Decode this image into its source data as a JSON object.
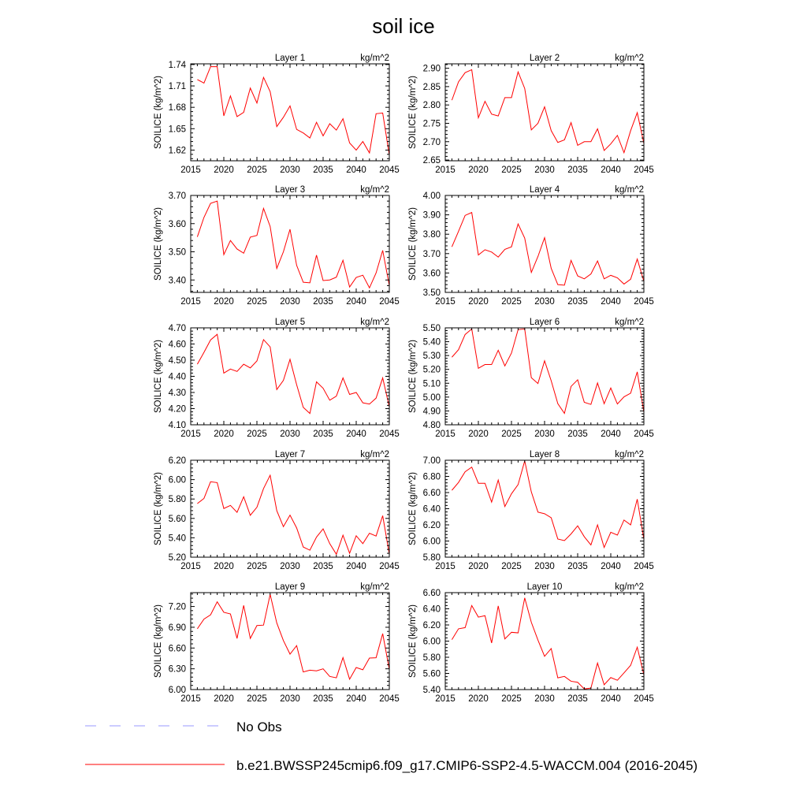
{
  "figure": {
    "title": "soil ice",
    "legend": [
      {
        "label": "No Obs",
        "color": "#9999ff",
        "style": "dashed"
      },
      {
        "label": "b.e21.BWSSP245cmip6.f09_g17.CMIP6-SSP2-4.5-WACCM.004 (2016-2045)",
        "color": "#ff0000",
        "style": "solid"
      }
    ]
  },
  "colors": {
    "series": "#ff0000",
    "axes": "#000000"
  },
  "chart_data": [
    {
      "type": "line",
      "title": "Layer 1",
      "units": "kg/m^2",
      "ylabel": "SOILICE  (kg/m^2)",
      "xlim": [
        2015,
        2045
      ],
      "ylim": [
        1.605,
        1.741
      ],
      "xticks": [
        "2015",
        "2020",
        "2025",
        "2030",
        "2035",
        "2040",
        "2045"
      ],
      "yticks": [
        "1.62",
        "1.65",
        "1.68",
        "1.71",
        "1.74"
      ],
      "x": [
        2016,
        2017,
        2018,
        2019,
        2020,
        2021,
        2022,
        2023,
        2024,
        2025,
        2026,
        2027,
        2028,
        2029,
        2030,
        2031,
        2032,
        2033,
        2034,
        2035,
        2036,
        2037,
        2038,
        2039,
        2040,
        2041,
        2042,
        2043,
        2044,
        2045
      ],
      "series": [
        {
          "values": [
            1.719,
            1.714,
            1.737,
            1.737,
            1.668,
            1.696,
            1.667,
            1.673,
            1.707,
            1.686,
            1.722,
            1.702,
            1.653,
            1.666,
            1.682,
            1.649,
            1.644,
            1.637,
            1.659,
            1.64,
            1.657,
            1.648,
            1.664,
            1.63,
            1.62,
            1.632,
            1.616,
            1.671,
            1.672,
            1.613
          ]
        }
      ]
    },
    {
      "type": "line",
      "title": "Layer 2",
      "units": "kg/m^2",
      "ylabel": "SOILICE  (kg/m^2)",
      "xlim": [
        2015,
        2045
      ],
      "ylim": [
        2.648,
        2.912
      ],
      "xticks": [
        "2015",
        "2020",
        "2025",
        "2030",
        "2035",
        "2040",
        "2045"
      ],
      "yticks": [
        "2.65",
        "2.70",
        "2.75",
        "2.80",
        "2.85",
        "2.90"
      ],
      "x": [
        2016,
        2017,
        2018,
        2019,
        2020,
        2021,
        2022,
        2023,
        2024,
        2025,
        2026,
        2027,
        2028,
        2029,
        2030,
        2031,
        2032,
        2033,
        2034,
        2035,
        2036,
        2037,
        2038,
        2039,
        2040,
        2041,
        2042,
        2043,
        2044,
        2045
      ],
      "series": [
        {
          "values": [
            2.813,
            2.863,
            2.888,
            2.896,
            2.765,
            2.81,
            2.775,
            2.77,
            2.82,
            2.82,
            2.89,
            2.845,
            2.732,
            2.75,
            2.795,
            2.73,
            2.698,
            2.705,
            2.752,
            2.69,
            2.7,
            2.7,
            2.735,
            2.676,
            2.694,
            2.717,
            2.67,
            2.73,
            2.779,
            2.695
          ]
        }
      ]
    },
    {
      "type": "line",
      "title": "Layer 3",
      "units": "kg/m^2",
      "ylabel": "SOILICE  (kg/m^2)",
      "xlim": [
        2015,
        2045
      ],
      "ylim": [
        3.356,
        3.7
      ],
      "xticks": [
        "2015",
        "2020",
        "2025",
        "2030",
        "2035",
        "2040",
        "2045"
      ],
      "yticks": [
        "3.40",
        "3.50",
        "3.60",
        "3.70"
      ],
      "x": [
        2016,
        2017,
        2018,
        2019,
        2020,
        2021,
        2022,
        2023,
        2024,
        2025,
        2026,
        2027,
        2028,
        2029,
        2030,
        2031,
        2032,
        2033,
        2034,
        2035,
        2036,
        2037,
        2038,
        2039,
        2040,
        2041,
        2042,
        2043,
        2044,
        2045
      ],
      "series": [
        {
          "values": [
            3.553,
            3.622,
            3.672,
            3.68,
            3.49,
            3.54,
            3.51,
            3.495,
            3.552,
            3.558,
            3.654,
            3.59,
            3.441,
            3.5,
            3.58,
            3.452,
            3.392,
            3.39,
            3.488,
            3.398,
            3.4,
            3.41,
            3.47,
            3.375,
            3.409,
            3.417,
            3.372,
            3.425,
            3.505,
            3.38
          ]
        }
      ]
    },
    {
      "type": "line",
      "title": "Layer 4",
      "units": "kg/m^2",
      "ylabel": "SOILICE  (kg/m^2)",
      "xlim": [
        2015,
        2045
      ],
      "ylim": [
        3.5,
        4.0
      ],
      "xticks": [
        "2015",
        "2020",
        "2025",
        "2030",
        "2035",
        "2040",
        "2045"
      ],
      "yticks": [
        "3.50",
        "3.60",
        "3.70",
        "3.80",
        "3.90",
        "4.00"
      ],
      "x": [
        2016,
        2017,
        2018,
        2019,
        2020,
        2021,
        2022,
        2023,
        2024,
        2025,
        2026,
        2027,
        2028,
        2029,
        2030,
        2031,
        2032,
        2033,
        2034,
        2035,
        2036,
        2037,
        2038,
        2039,
        2040,
        2041,
        2042,
        2043,
        2044,
        2045
      ],
      "series": [
        {
          "values": [
            3.735,
            3.815,
            3.897,
            3.912,
            3.693,
            3.72,
            3.708,
            3.682,
            3.722,
            3.735,
            3.853,
            3.78,
            3.603,
            3.685,
            3.782,
            3.624,
            3.54,
            3.537,
            3.665,
            3.585,
            3.57,
            3.595,
            3.662,
            3.57,
            3.588,
            3.575,
            3.543,
            3.568,
            3.672,
            3.557
          ]
        }
      ]
    },
    {
      "type": "line",
      "title": "Layer 5",
      "units": "kg/m^2",
      "ylabel": "SOILICE  (kg/m^2)",
      "xlim": [
        2015,
        2045
      ],
      "ylim": [
        4.1,
        4.7
      ],
      "xticks": [
        "2015",
        "2020",
        "2025",
        "2030",
        "2035",
        "2040",
        "2045"
      ],
      "yticks": [
        "4.10",
        "4.20",
        "4.30",
        "4.40",
        "4.50",
        "4.60",
        "4.70"
      ],
      "x": [
        2016,
        2017,
        2018,
        2019,
        2020,
        2021,
        2022,
        2023,
        2024,
        2025,
        2026,
        2027,
        2028,
        2029,
        2030,
        2031,
        2032,
        2033,
        2034,
        2035,
        2036,
        2037,
        2038,
        2039,
        2040,
        2041,
        2042,
        2043,
        2044,
        2045
      ],
      "series": [
        {
          "values": [
            4.475,
            4.548,
            4.625,
            4.66,
            4.42,
            4.445,
            4.43,
            4.475,
            4.452,
            4.495,
            4.627,
            4.582,
            4.318,
            4.375,
            4.505,
            4.348,
            4.208,
            4.17,
            4.366,
            4.326,
            4.252,
            4.277,
            4.39,
            4.288,
            4.3,
            4.236,
            4.228,
            4.265,
            4.39,
            4.21
          ]
        }
      ]
    },
    {
      "type": "line",
      "title": "Layer 6",
      "units": "kg/m^2",
      "ylabel": "SOILICE  (kg/m^2)",
      "xlim": [
        2015,
        2045
      ],
      "ylim": [
        4.8,
        5.5
      ],
      "xticks": [
        "2015",
        "2020",
        "2025",
        "2030",
        "2035",
        "2040",
        "2045"
      ],
      "yticks": [
        "4.80",
        "4.90",
        "5.00",
        "5.10",
        "5.20",
        "5.30",
        "5.40",
        "5.50"
      ],
      "x": [
        2016,
        2017,
        2018,
        2019,
        2020,
        2021,
        2022,
        2023,
        2024,
        2025,
        2026,
        2027,
        2028,
        2029,
        2030,
        2031,
        2032,
        2033,
        2034,
        2035,
        2036,
        2037,
        2038,
        2039,
        2040,
        2041,
        2042,
        2043,
        2044,
        2045
      ],
      "series": [
        {
          "values": [
            5.288,
            5.342,
            5.452,
            5.492,
            5.208,
            5.235,
            5.235,
            5.338,
            5.225,
            5.318,
            5.487,
            5.492,
            5.14,
            5.098,
            5.262,
            5.118,
            4.953,
            4.882,
            5.077,
            5.125,
            4.962,
            4.947,
            5.102,
            4.952,
            5.066,
            4.95,
            5.002,
            5.028,
            5.182,
            4.89
          ]
        }
      ]
    },
    {
      "type": "line",
      "title": "Layer 7",
      "units": "kg/m^2",
      "ylabel": "SOILICE  (kg/m^2)",
      "xlim": [
        2015,
        2045
      ],
      "ylim": [
        5.2,
        6.2
      ],
      "xticks": [
        "2015",
        "2020",
        "2025",
        "2030",
        "2035",
        "2040",
        "2045"
      ],
      "yticks": [
        "5.20",
        "5.40",
        "5.60",
        "5.80",
        "6.00",
        "6.20"
      ],
      "x": [
        2016,
        2017,
        2018,
        2019,
        2020,
        2021,
        2022,
        2023,
        2024,
        2025,
        2026,
        2027,
        2028,
        2029,
        2030,
        2031,
        2032,
        2033,
        2034,
        2035,
        2036,
        2037,
        2038,
        2039,
        2040,
        2041,
        2042,
        2043,
        2044,
        2045
      ],
      "series": [
        {
          "values": [
            5.753,
            5.806,
            5.978,
            5.969,
            5.702,
            5.734,
            5.663,
            5.823,
            5.632,
            5.715,
            5.908,
            6.045,
            5.68,
            5.515,
            5.634,
            5.502,
            5.305,
            5.272,
            5.407,
            5.492,
            5.34,
            5.23,
            5.427,
            5.24,
            5.421,
            5.34,
            5.447,
            5.418,
            5.628,
            5.23
          ]
        }
      ]
    },
    {
      "type": "line",
      "title": "Layer 8",
      "units": "kg/m^2",
      "ylabel": "SOILICE  (kg/m^2)",
      "xlim": [
        2015,
        2045
      ],
      "ylim": [
        5.8,
        7.0
      ],
      "xticks": [
        "2015",
        "2020",
        "2025",
        "2030",
        "2035",
        "2040",
        "2045"
      ],
      "yticks": [
        "5.80",
        "6.00",
        "6.20",
        "6.40",
        "6.60",
        "6.80",
        "7.00"
      ],
      "x": [
        2016,
        2017,
        2018,
        2019,
        2020,
        2021,
        2022,
        2023,
        2024,
        2025,
        2026,
        2027,
        2028,
        2029,
        2030,
        2031,
        2032,
        2033,
        2034,
        2035,
        2036,
        2037,
        2038,
        2039,
        2040,
        2041,
        2042,
        2043,
        2044,
        2045
      ],
      "series": [
        {
          "values": [
            6.628,
            6.725,
            6.858,
            6.915,
            6.715,
            6.715,
            6.482,
            6.755,
            6.427,
            6.585,
            6.698,
            6.992,
            6.608,
            6.358,
            6.338,
            6.288,
            6.025,
            6.005,
            6.088,
            6.188,
            6.053,
            5.952,
            6.2,
            5.92,
            6.108,
            6.073,
            6.26,
            6.2,
            6.518,
            6.02
          ]
        }
      ]
    },
    {
      "type": "line",
      "title": "Layer 9",
      "units": "kg/m^2",
      "ylabel": "SOILICE  (kg/m^2)",
      "xlim": [
        2015,
        2045
      ],
      "ylim": [
        6.0,
        7.4
      ],
      "xticks": [
        "2015",
        "2020",
        "2025",
        "2030",
        "2035",
        "2040",
        "2045"
      ],
      "yticks": [
        "6.00",
        "6.30",
        "6.60",
        "6.90",
        "7.20"
      ],
      "x": [
        2016,
        2017,
        2018,
        2019,
        2020,
        2021,
        2022,
        2023,
        2024,
        2025,
        2026,
        2027,
        2028,
        2029,
        2030,
        2031,
        2032,
        2033,
        2034,
        2035,
        2036,
        2037,
        2038,
        2039,
        2040,
        2041,
        2042,
        2043,
        2044,
        2045
      ],
      "series": [
        {
          "values": [
            6.878,
            7.018,
            7.08,
            7.268,
            7.116,
            7.092,
            6.738,
            7.216,
            6.738,
            6.925,
            6.931,
            7.375,
            6.962,
            6.708,
            6.512,
            6.635,
            6.255,
            6.28,
            6.27,
            6.3,
            6.19,
            6.17,
            6.462,
            6.15,
            6.319,
            6.286,
            6.455,
            6.46,
            6.808,
            6.29
          ]
        }
      ]
    },
    {
      "type": "line",
      "title": "Layer 10",
      "units": "kg/m^2",
      "ylabel": "SOILICE  (kg/m^2)",
      "xlim": [
        2015,
        2045
      ],
      "ylim": [
        5.4,
        6.6
      ],
      "xticks": [
        "2015",
        "2020",
        "2025",
        "2030",
        "2035",
        "2040",
        "2045"
      ],
      "yticks": [
        "5.40",
        "5.60",
        "5.80",
        "6.00",
        "6.20",
        "6.40",
        "6.60"
      ],
      "x": [
        2016,
        2017,
        2018,
        2019,
        2020,
        2021,
        2022,
        2023,
        2024,
        2025,
        2026,
        2027,
        2028,
        2029,
        2030,
        2031,
        2032,
        2033,
        2034,
        2035,
        2036,
        2037,
        2038,
        2039,
        2040,
        2041,
        2042,
        2043,
        2044,
        2045
      ],
      "series": [
        {
          "values": [
            6.018,
            6.152,
            6.167,
            6.44,
            6.297,
            6.315,
            5.977,
            6.436,
            6.027,
            6.109,
            6.102,
            6.535,
            6.233,
            6.013,
            5.812,
            5.908,
            5.545,
            5.563,
            5.503,
            5.49,
            5.408,
            5.418,
            5.728,
            5.46,
            5.549,
            5.515,
            5.607,
            5.7,
            5.925,
            5.58
          ]
        }
      ]
    }
  ]
}
